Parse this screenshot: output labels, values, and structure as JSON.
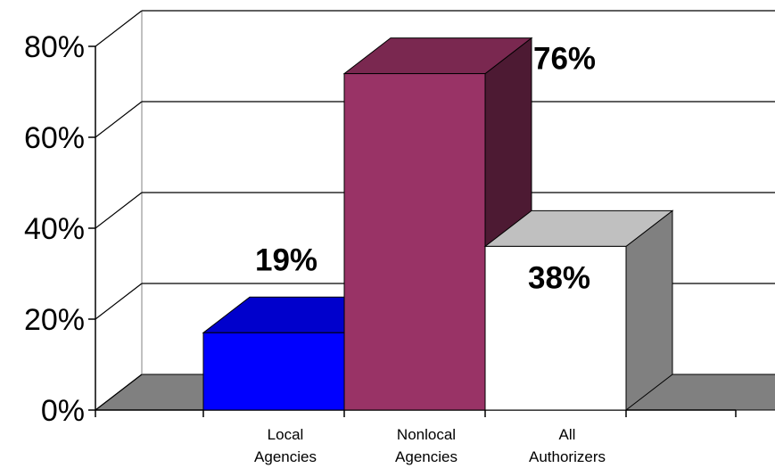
{
  "chart_data": {
    "type": "bar",
    "three_d": true,
    "categories": [
      [
        "Local",
        "Agencies"
      ],
      [
        "Nonlocal",
        "Agencies"
      ],
      [
        "All",
        "Authorizers"
      ]
    ],
    "values": [
      17,
      74,
      36
    ],
    "data_labels": [
      "19%",
      "76%",
      "38%"
    ],
    "bar_colors": {
      "front": [
        "#0000ff",
        "#993366",
        "#ffffff"
      ],
      "top": [
        "#0000cc",
        "#7a2850",
        "#c0c0c0"
      ],
      "side": [
        "#000080",
        "#4d1a33",
        "#808080"
      ]
    },
    "floor_color": "#808080",
    "y_ticks": [
      "0%",
      "20%",
      "40%",
      "60%",
      "80%"
    ],
    "ylim": [
      0,
      80
    ],
    "grid": true,
    "legend": "none",
    "title": "",
    "xlabel": "",
    "ylabel": ""
  }
}
